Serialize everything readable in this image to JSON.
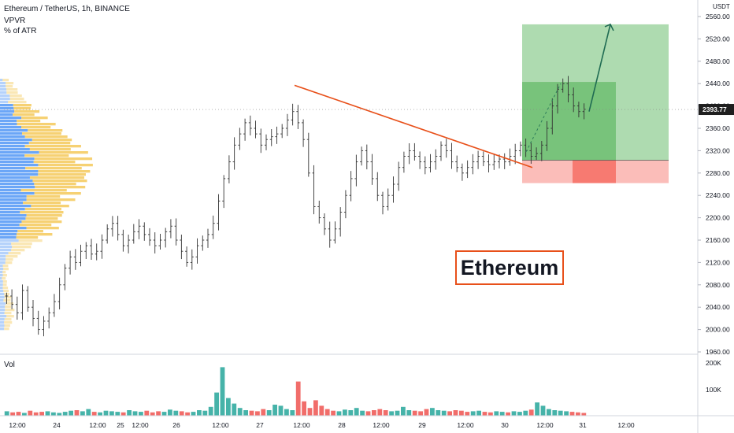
{
  "header": {
    "symbol": "Ethereum / TetherUS, 1h, BINANCE",
    "indicator1": "VPVR",
    "indicator2": "% of ATR"
  },
  "price_axis": {
    "currency": "USDT",
    "ticks": [
      "2560.00",
      "2520.00",
      "2480.00",
      "2440.00",
      "2400.00",
      "2360.00",
      "2320.00",
      "2280.00",
      "2240.00",
      "2200.00",
      "2160.00",
      "2120.00",
      "2080.00",
      "2040.00",
      "2000.00",
      "1960.00"
    ],
    "current_price": "2393.77"
  },
  "volume_axis": {
    "ticks": [
      "200K",
      "100K"
    ],
    "label": "Vol"
  },
  "time_axis": {
    "ticks": [
      "12:00",
      "24",
      "12:00",
      "25",
      "12:00",
      "26",
      "12:00",
      "27",
      "12:00",
      "28",
      "12:00",
      "29",
      "12:00",
      "30",
      "12:00",
      "31",
      "12:00"
    ]
  },
  "annotation": {
    "text": "Ethereum"
  },
  "colors": {
    "up": "#26a69a",
    "down": "#ef5350",
    "candle": "#333333",
    "trendline": "#e8501a",
    "profit_zone": "#4caf50",
    "loss_zone": "#f44336",
    "vpvr_up": "#5b9cf6",
    "vpvr_down": "#f5c95b",
    "arrow": "#1f6b52"
  },
  "chart_data": {
    "type": "candlestick",
    "title": "Ethereum / TetherUS, 1h, BINANCE",
    "ylabel": "USDT",
    "ylim": [
      1960,
      2580
    ],
    "close_path": [
      2060,
      2045,
      2030,
      2070,
      2040,
      2020,
      2000,
      2015,
      2030,
      2050,
      2080,
      2110,
      2130,
      2120,
      2140,
      2150,
      2135,
      2140,
      2160,
      2180,
      2190,
      2170,
      2150,
      2160,
      2175,
      2185,
      2170,
      2160,
      2150,
      2160,
      2175,
      2185,
      2160,
      2140,
      2120,
      2130,
      2150,
      2160,
      2170,
      2190,
      2230,
      2270,
      2300,
      2330,
      2350,
      2370,
      2360,
      2350,
      2330,
      2340,
      2345,
      2350,
      2360,
      2375,
      2390,
      2370,
      2340,
      2280,
      2220,
      2200,
      2180,
      2160,
      2180,
      2210,
      2240,
      2270,
      2300,
      2320,
      2300,
      2270,
      2240,
      2220,
      2240,
      2260,
      2290,
      2310,
      2320,
      2310,
      2300,
      2290,
      2300,
      2310,
      2330,
      2320,
      2300,
      2290,
      2280,
      2290,
      2300,
      2310,
      2300,
      2295,
      2300,
      2305,
      2300,
      2310,
      2320,
      2330,
      2320,
      2310,
      2315,
      2330,
      2360,
      2400,
      2430,
      2440,
      2420,
      2400,
      2390,
      2394
    ],
    "trendline": {
      "from": [
        27,
        2437
      ],
      "to": [
        30,
        2290
      ]
    },
    "long_position": {
      "entry": 2303,
      "stop": 2262,
      "target": 2546
    },
    "volume_heights": [
      0.08,
      0.06,
      0.07,
      0.05,
      0.09,
      0.06,
      0.07,
      0.08,
      0.06,
      0.05,
      0.07,
      0.09,
      0.1,
      0.08,
      0.12,
      0.07,
      0.06,
      0.09,
      0.08,
      0.07,
      0.06,
      0.1,
      0.08,
      0.07,
      0.09,
      0.06,
      0.08,
      0.07,
      0.11,
      0.09,
      0.08,
      0.06,
      0.07,
      0.1,
      0.09,
      0.16,
      0.42,
      0.88,
      0.32,
      0.22,
      0.14,
      0.1,
      0.09,
      0.08,
      0.12,
      0.1,
      0.2,
      0.18,
      0.12,
      0.1,
      0.62,
      0.26,
      0.14,
      0.28,
      0.18,
      0.12,
      0.09,
      0.08,
      0.11,
      0.1,
      0.14,
      0.09,
      0.08,
      0.1,
      0.12,
      0.1,
      0.08,
      0.09,
      0.16,
      0.1,
      0.09,
      0.08,
      0.12,
      0.14,
      0.1,
      0.09,
      0.08,
      0.1,
      0.09,
      0.07,
      0.08,
      0.09,
      0.07,
      0.06,
      0.08,
      0.07,
      0.06,
      0.08,
      0.07,
      0.09,
      0.11,
      0.24,
      0.18,
      0.12,
      0.1,
      0.09,
      0.08,
      0.07,
      0.06,
      0.05
    ]
  }
}
